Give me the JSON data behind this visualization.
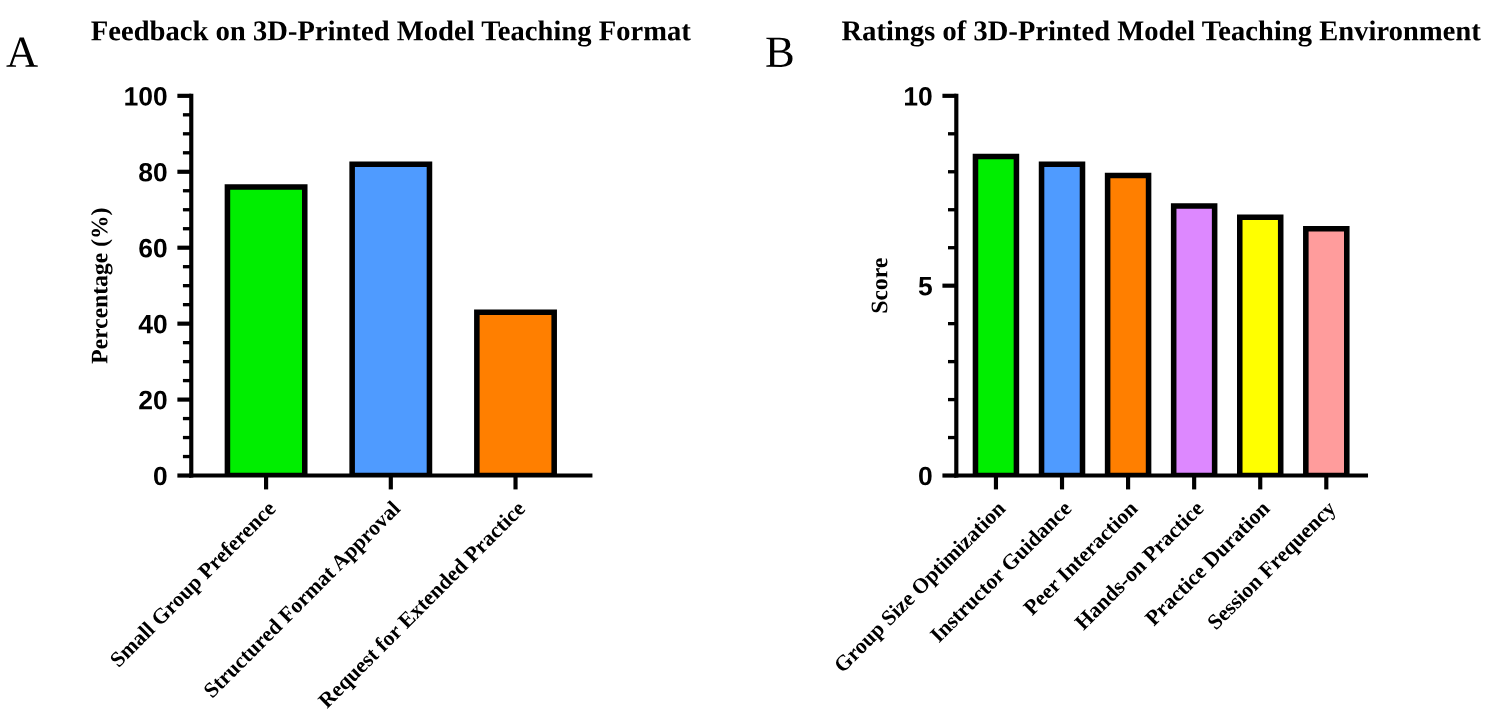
{
  "chart_data": [
    {
      "type": "bar",
      "title": "Feedback on 3D-Printed Model Teaching Format",
      "ylabel": "Percentage (%)",
      "annotations": [
        "A"
      ],
      "categories": [
        "Small Group Preference",
        "Structured Format Approval",
        "Request for Extended Practice"
      ],
      "values": [
        76,
        82,
        43
      ],
      "colors": [
        "#00ee00",
        "#4f9bff",
        "#ff7f00"
      ],
      "ylim": [
        0,
        100
      ],
      "yticks": [
        0,
        {
          "value": 5,
          "label": null
        },
        {
          "value": 10,
          "label": null
        },
        {
          "value": 15,
          "label": null
        },
        20,
        {
          "value": 25,
          "label": null
        },
        {
          "value": 30,
          "label": null
        },
        {
          "value": 35,
          "label": null
        },
        40,
        {
          "value": 45,
          "label": null
        },
        {
          "value": 50,
          "label": null
        },
        {
          "value": 55,
          "label": null
        },
        60,
        {
          "value": 65,
          "label": null
        },
        {
          "value": 70,
          "label": null
        },
        {
          "value": 75,
          "label": null
        },
        80,
        {
          "value": 85,
          "label": null
        },
        {
          "value": 90,
          "label": null
        },
        {
          "value": 95,
          "label": null
        },
        100
      ]
    },
    {
      "type": "bar",
      "title": "Ratings of 3D-Printed Model Teaching Environment",
      "ylabel": "Score",
      "annotations": [
        "B"
      ],
      "categories": [
        "Group Size Optimization",
        "Instructor Guidance",
        "Peer Interaction",
        "Hands-on Practice",
        "Practice Duration",
        "Session Frequency"
      ],
      "values": [
        8.4,
        8.2,
        7.9,
        7.1,
        6.8,
        6.5
      ],
      "colors": [
        "#00ee00",
        "#4f9bff",
        "#ff7f00",
        "#dd88ff",
        "#ffff00",
        "#ff9c9c"
      ],
      "ylim": [
        0,
        10
      ],
      "yticks": [
        0,
        {
          "value": 1,
          "label": null
        },
        {
          "value": 2,
          "label": null
        },
        {
          "value": 3,
          "label": null
        },
        {
          "value": 4,
          "label": null
        },
        5,
        {
          "value": 6,
          "label": null
        },
        {
          "value": 7,
          "label": null
        },
        {
          "value": 8,
          "label": null
        },
        {
          "value": 9,
          "label": null
        },
        10
      ]
    }
  ]
}
